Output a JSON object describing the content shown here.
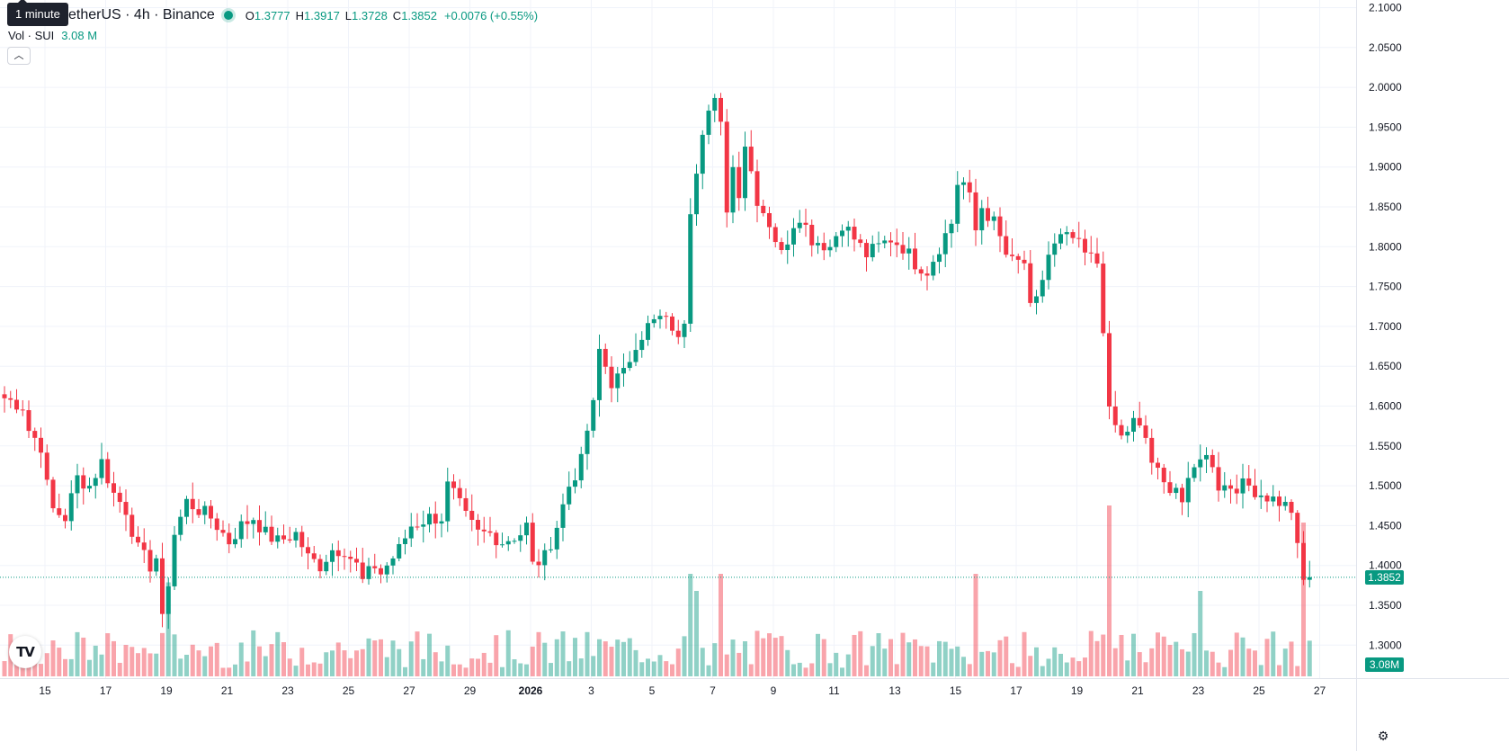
{
  "legend": {
    "symbol": "etherUS · 4h · Binance",
    "open_label": "O",
    "open_value": "1.3777",
    "high_label": "H",
    "high_value": "1.3917",
    "low_label": "L",
    "low_value": "1.3728",
    "close_label": "C",
    "close_value": "1.3852",
    "change": "+0.0076 (+0.55%)"
  },
  "tooltip": {
    "text": "1 minute"
  },
  "volume": {
    "label": "Vol · SUI",
    "value": "3.08 M",
    "tag": "3.08M"
  },
  "last_price": {
    "value": 1.3852,
    "label": "1.3852"
  },
  "icons": {
    "logo": "tradingview-logo",
    "collapse": "chevron-up-icon",
    "settings": "settings-icon"
  },
  "colors": {
    "up": "#089981",
    "down": "#f23645",
    "grid": "#f0f3fa",
    "text": "#131722"
  },
  "chart_data": {
    "type": "candlestick",
    "y_ticks": [
      "2.1000",
      "2.0500",
      "2.0000",
      "1.9500",
      "1.9000",
      "1.8500",
      "1.8000",
      "1.7500",
      "1.7000",
      "1.6500",
      "1.6000",
      "1.5500",
      "1.5000",
      "1.4500",
      "1.4000",
      "1.3500",
      "1.3000"
    ],
    "ylim": [
      1.26,
      2.1
    ],
    "x_ticks": [
      "15",
      "17",
      "19",
      "21",
      "23",
      "25",
      "27",
      "29",
      "2026",
      "3",
      "5",
      "7",
      "9",
      "11",
      "13",
      "15",
      "17",
      "19",
      "21",
      "23",
      "25",
      "27"
    ],
    "path": [
      [
        0,
        1.61
      ],
      [
        3,
        1.6
      ],
      [
        4,
        1.57
      ],
      [
        6,
        1.55
      ],
      [
        7,
        1.5
      ],
      [
        8,
        1.47
      ],
      [
        10,
        1.46
      ],
      [
        12,
        1.51
      ],
      [
        14,
        1.5
      ],
      [
        16,
        1.53
      ],
      [
        18,
        1.49
      ],
      [
        20,
        1.47
      ],
      [
        22,
        1.42
      ],
      [
        24,
        1.4
      ],
      [
        25,
        1.41
      ],
      [
        26,
        1.33
      ],
      [
        27,
        1.38
      ],
      [
        28,
        1.44
      ],
      [
        30,
        1.48
      ],
      [
        32,
        1.47
      ],
      [
        34,
        1.46
      ],
      [
        35,
        1.45
      ],
      [
        37,
        1.43
      ],
      [
        39,
        1.45
      ],
      [
        41,
        1.46
      ],
      [
        43,
        1.44
      ],
      [
        45,
        1.43
      ],
      [
        48,
        1.44
      ],
      [
        50,
        1.41
      ],
      [
        52,
        1.4
      ],
      [
        54,
        1.42
      ],
      [
        56,
        1.42
      ],
      [
        58,
        1.4
      ],
      [
        59,
        1.38
      ],
      [
        61,
        1.4
      ],
      [
        62,
        1.39
      ],
      [
        65,
        1.42
      ],
      [
        67,
        1.45
      ],
      [
        70,
        1.46
      ],
      [
        72,
        1.46
      ],
      [
        73,
        1.5
      ],
      [
        74,
        1.49
      ],
      [
        76,
        1.46
      ],
      [
        78,
        1.44
      ],
      [
        80,
        1.44
      ],
      [
        82,
        1.43
      ],
      [
        85,
        1.44
      ],
      [
        86,
        1.45
      ],
      [
        87,
        1.4
      ],
      [
        89,
        1.41
      ],
      [
        91,
        1.45
      ],
      [
        93,
        1.5
      ],
      [
        95,
        1.53
      ],
      [
        96,
        1.57
      ],
      [
        97,
        1.6
      ],
      [
        98,
        1.67
      ],
      [
        100,
        1.63
      ],
      [
        102,
        1.64
      ],
      [
        104,
        1.68
      ],
      [
        106,
        1.7
      ],
      [
        108,
        1.71
      ],
      [
        110,
        1.7
      ],
      [
        111,
        1.68
      ],
      [
        112,
        1.71
      ],
      [
        113,
        1.85
      ],
      [
        114,
        1.9
      ],
      [
        115,
        1.95
      ],
      [
        116,
        1.97
      ],
      [
        117,
        1.98
      ],
      [
        118,
        1.95
      ],
      [
        119,
        1.85
      ],
      [
        120,
        1.9
      ],
      [
        121,
        1.87
      ],
      [
        122,
        1.93
      ],
      [
        124,
        1.86
      ],
      [
        126,
        1.83
      ],
      [
        128,
        1.79
      ],
      [
        130,
        1.83
      ],
      [
        131,
        1.84
      ],
      [
        133,
        1.81
      ],
      [
        136,
        1.8
      ],
      [
        138,
        1.83
      ],
      [
        140,
        1.81
      ],
      [
        142,
        1.79
      ],
      [
        144,
        1.8
      ],
      [
        146,
        1.81
      ],
      [
        148,
        1.8
      ],
      [
        150,
        1.78
      ],
      [
        152,
        1.77
      ],
      [
        154,
        1.8
      ],
      [
        156,
        1.83
      ],
      [
        157,
        1.88
      ],
      [
        158,
        1.88
      ],
      [
        159,
        1.86
      ],
      [
        160,
        1.82
      ],
      [
        161,
        1.85
      ],
      [
        163,
        1.83
      ],
      [
        164,
        1.81
      ],
      [
        165,
        1.79
      ],
      [
        166,
        1.78
      ],
      [
        168,
        1.78
      ],
      [
        169,
        1.72
      ],
      [
        170,
        1.73
      ],
      [
        172,
        1.79
      ],
      [
        174,
        1.81
      ],
      [
        176,
        1.81
      ],
      [
        178,
        1.79
      ],
      [
        180,
        1.78
      ],
      [
        181,
        1.7
      ],
      [
        182,
        1.59
      ],
      [
        184,
        1.56
      ],
      [
        186,
        1.58
      ],
      [
        188,
        1.56
      ],
      [
        189,
        1.53
      ],
      [
        191,
        1.5
      ],
      [
        193,
        1.5
      ],
      [
        194,
        1.48
      ],
      [
        196,
        1.52
      ],
      [
        197,
        1.54
      ],
      [
        199,
        1.53
      ],
      [
        200,
        1.5
      ],
      [
        202,
        1.5
      ],
      [
        205,
        1.5
      ],
      [
        207,
        1.49
      ],
      [
        210,
        1.48
      ],
      [
        212,
        1.47
      ],
      [
        213,
        1.42
      ],
      [
        214,
        1.38
      ],
      [
        215,
        1.3852
      ]
    ],
    "volume_spikes": {
      "27": 0.55,
      "113": 0.6,
      "114": 0.5,
      "118": 0.6,
      "160": 0.6,
      "182": 1.0,
      "197": 0.5,
      "214": 0.9
    },
    "volume_max": "4.2M"
  }
}
